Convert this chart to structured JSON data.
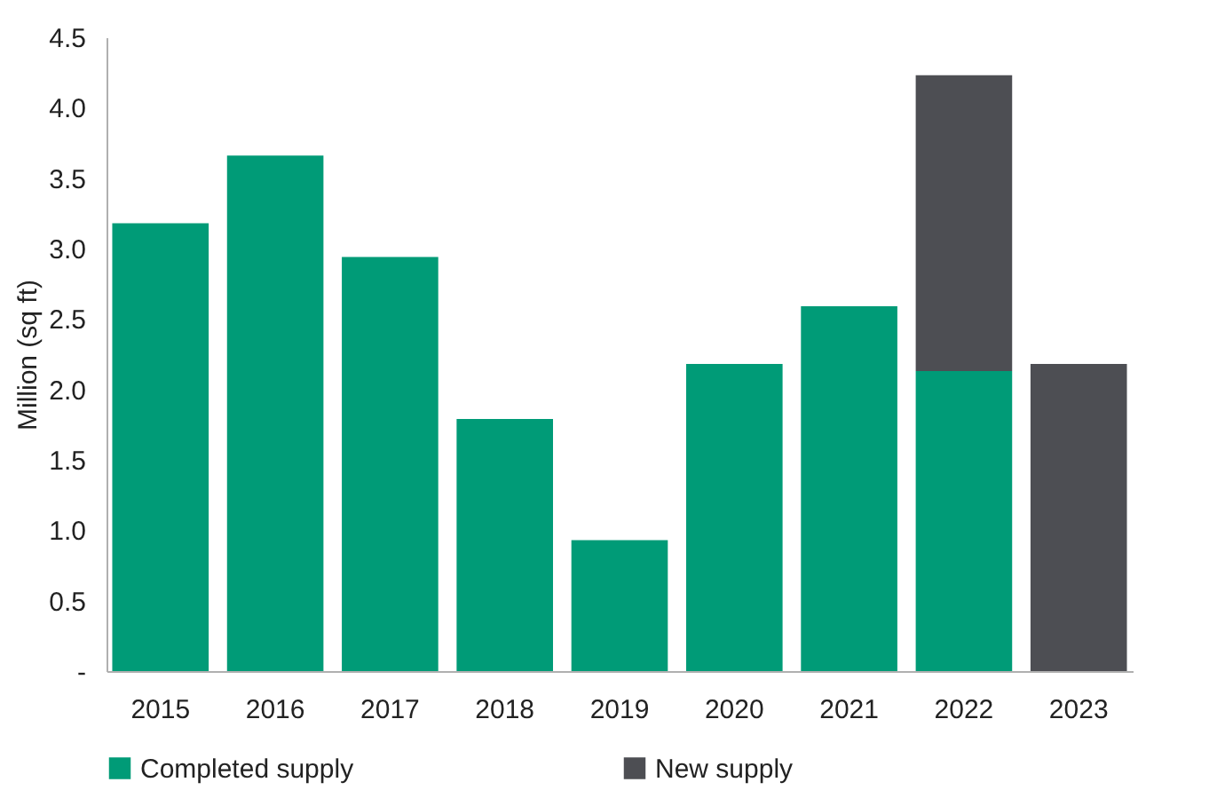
{
  "chart_data": {
    "type": "bar",
    "stacked": true,
    "ylabel": "Million (sq ft)",
    "categories": [
      "2015",
      "2016",
      "2017",
      "2018",
      "2019",
      "2020",
      "2021",
      "2022",
      "2023"
    ],
    "series": [
      {
        "name": "Completed supply",
        "color": "#009b77",
        "values": [
          3.18,
          3.66,
          2.94,
          1.79,
          0.93,
          2.18,
          2.59,
          2.13,
          null
        ]
      },
      {
        "name": "New supply",
        "color": "#4d4e53",
        "values": [
          null,
          null,
          null,
          null,
          null,
          null,
          null,
          2.1,
          2.18
        ]
      }
    ],
    "ylim": [
      0,
      4.5
    ],
    "yticks": [
      {
        "value": 0,
        "label": "-"
      },
      {
        "value": 0.5,
        "label": "0.5"
      },
      {
        "value": 1,
        "label": "1.0"
      },
      {
        "value": 1.5,
        "label": "1.5"
      },
      {
        "value": 2,
        "label": "2.0"
      },
      {
        "value": 2.5,
        "label": "2.5"
      },
      {
        "value": 3,
        "label": "3.0"
      },
      {
        "value": 3.5,
        "label": "3.5"
      },
      {
        "value": 4,
        "label": "4.0"
      },
      {
        "value": 4.5,
        "label": "4.5"
      }
    ],
    "grid": false,
    "legend": "bottom"
  }
}
